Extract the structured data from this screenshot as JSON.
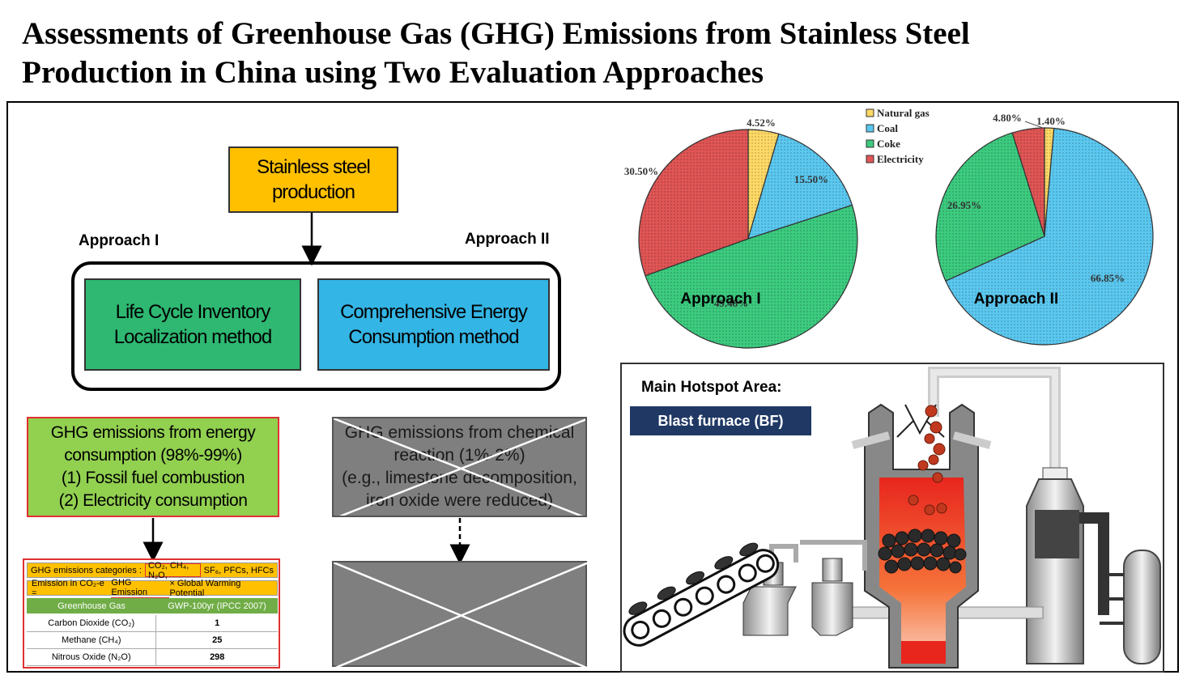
{
  "title": {
    "line1": "Assessments of Greenhouse Gas (GHG) Emissions from Stainless Steel",
    "line2": "Production in China using Two Evaluation Approaches"
  },
  "flow": {
    "production": [
      "Stainless steel",
      "production"
    ],
    "approach1_label": "Approach I",
    "approach2_label": "Approach II",
    "method1": [
      "Life Cycle Inventory",
      "Localization method"
    ],
    "method2": [
      "Comprehensive Energy",
      "Consumption method"
    ],
    "energy_box": [
      "GHG emissions from energy",
      "consumption (98%-99%)",
      "(1)  Fossil fuel combustion",
      "(2)  Electricity consumption"
    ],
    "chemical_box": [
      "GHG emissions from chemical",
      "reaction (1%-2%)",
      "(e.g., limestone decomposition,",
      "iron oxide were reduced)"
    ]
  },
  "ghg_table": {
    "categories_label": "GHG emissions categories :",
    "categories_boxed": "CO₂, CH₄, N₂O,",
    "categories_rest": "SF₆, PFCs, HFCs",
    "formula_prefix": "Emission in CO₂-e = ",
    "formula_em": "GHG Emission",
    "formula_suffix": " × Global Warming Potential",
    "col1": "Greenhouse Gas",
    "col2": "GWP-100yr (IPCC 2007)",
    "rows": [
      {
        "gas": "Carbon Dioxide (CO₂)",
        "gwp": "1"
      },
      {
        "gas": "Methane (CH₄)",
        "gwp": "25"
      },
      {
        "gas": "Nitrous Oxide (N₂O)",
        "gwp": "298"
      }
    ]
  },
  "chart_data": [
    {
      "type": "pie",
      "label": "Approach I",
      "categories": [
        "Natural gas",
        "Coal",
        "Coke",
        "Electricity"
      ],
      "values": [
        4.52,
        15.5,
        49.48,
        30.5
      ],
      "value_labels": [
        "4.52%",
        "15.50%",
        "49.48%",
        "30.50%"
      ],
      "colors": [
        "#FFD966",
        "#5BC8F0",
        "#3CCB7F",
        "#E05555"
      ],
      "legend_position": "top-right"
    },
    {
      "type": "pie",
      "label": "Approach II",
      "categories": [
        "Natural gas",
        "Coal",
        "Coke",
        "Electricity"
      ],
      "values": [
        1.4,
        66.85,
        26.95,
        4.8
      ],
      "value_labels": [
        "1.40%",
        "66.85%",
        "26.95%",
        "4.80%"
      ],
      "colors": [
        "#FFD966",
        "#5BC8F0",
        "#3CCB7F",
        "#E05555"
      ]
    }
  ],
  "hotspot": {
    "title": "Main Hotspot Area:",
    "badge": "Blast furnace (BF)"
  }
}
